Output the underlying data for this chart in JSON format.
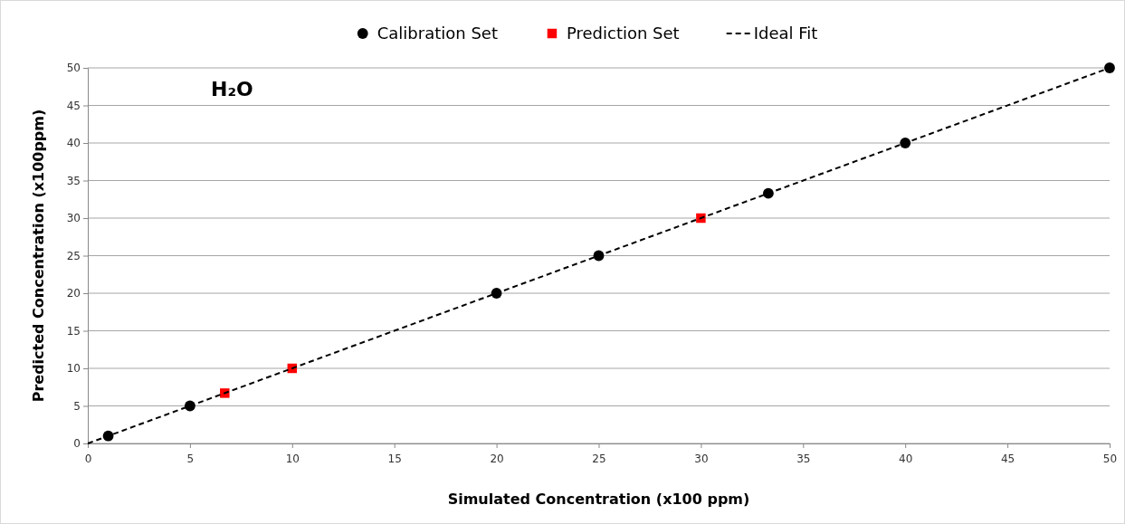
{
  "chart_data": {
    "type": "scatter",
    "xlabel": "Simulated Concentration (x100 ppm)",
    "ylabel": "Predicted Concentration  (x100ppm)",
    "annotations": [
      "H₂O"
    ],
    "xlim": [
      0,
      50
    ],
    "xticks": [
      0,
      5,
      10,
      15,
      20,
      25,
      30,
      35,
      40,
      45,
      50
    ],
    "ylim": [
      0,
      50
    ],
    "yticks": [
      0,
      5,
      10,
      15,
      20,
      25,
      30,
      35,
      40,
      45,
      50
    ],
    "grid": "y",
    "legend": "top",
    "series": [
      {
        "name": "Calibration Set",
        "type": "scatter",
        "marker": "circle",
        "color": "#000000",
        "x": [
          1,
          5,
          20,
          25,
          33.3,
          40,
          50
        ],
        "values": [
          1,
          5,
          20,
          25,
          33.3,
          40,
          50
        ]
      },
      {
        "name": "Prediction Set",
        "type": "scatter",
        "marker": "square",
        "color": "#ff0000",
        "x": [
          6.7,
          10,
          30
        ],
        "values": [
          6.7,
          10,
          30
        ]
      },
      {
        "name": "Ideal Fit",
        "type": "line",
        "marker": "none",
        "line_style": "dashed",
        "color": "#000000",
        "x": [
          0,
          50
        ],
        "values": [
          0,
          50
        ]
      }
    ]
  }
}
